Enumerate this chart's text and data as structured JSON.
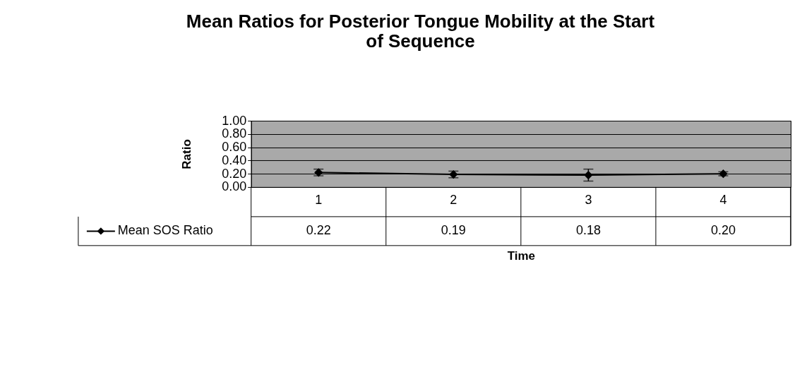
{
  "chart_data": {
    "type": "line",
    "title": "Mean Ratios for Posterior Tongue Mobility at the Start of Sequence",
    "xlabel": "Time",
    "ylabel": "Ratio",
    "categories": [
      "1",
      "2",
      "3",
      "4"
    ],
    "series": [
      {
        "name": "Mean SOS Ratio",
        "color": "#000000",
        "values": [
          0.22,
          0.19,
          0.18,
          0.2
        ],
        "errors": [
          0.05,
          0.05,
          0.09,
          0.03
        ]
      }
    ],
    "ylim": [
      0,
      1
    ],
    "yticks": [
      {
        "value": 0,
        "label": "0.00"
      },
      {
        "value": 0.2,
        "label": "0.20"
      },
      {
        "value": 0.4,
        "label": "0.40"
      },
      {
        "value": 0.6,
        "label": "0.60"
      },
      {
        "value": 0.8,
        "label": "0.80"
      },
      {
        "value": 1,
        "label": "1.00"
      }
    ],
    "value_labels": [
      "0.22",
      "0.19",
      "0.18",
      "0.20"
    ],
    "grid": "y",
    "marker": "diamond",
    "line_style": "solid",
    "legend": "bottom"
  }
}
